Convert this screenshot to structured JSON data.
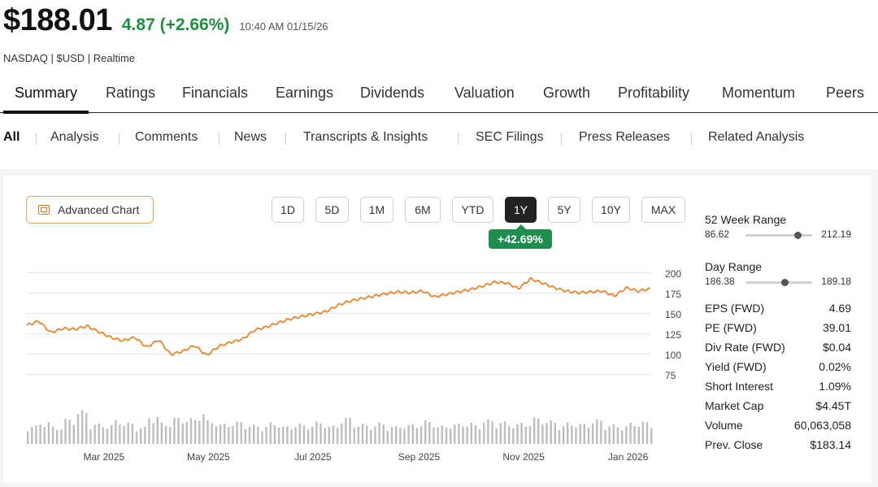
{
  "quote": {
    "price": "$188.01",
    "change": "4.87 (+2.66%)",
    "timestamp": "10:40 AM 01/15/26",
    "exchange": "NASDAQ | $USD | Realtime"
  },
  "main_tabs": [
    {
      "label": "Summary",
      "active": true
    },
    {
      "label": "Ratings"
    },
    {
      "label": "Financials"
    },
    {
      "label": "Earnings"
    },
    {
      "label": "Dividends"
    },
    {
      "label": "Valuation"
    },
    {
      "label": "Growth"
    },
    {
      "label": "Profitability"
    },
    {
      "label": "Momentum"
    },
    {
      "label": "Peers"
    }
  ],
  "sub_tabs": [
    {
      "label": "All",
      "active": true
    },
    {
      "label": "Analysis"
    },
    {
      "label": "Comments"
    },
    {
      "label": "News"
    },
    {
      "label": "Transcripts & Insights"
    },
    {
      "label": "SEC Filings"
    },
    {
      "label": "Press Releases"
    },
    {
      "label": "Related Analysis"
    }
  ],
  "chart_controls": {
    "advanced_chart_label": "Advanced Chart",
    "ranges": [
      "1D",
      "5D",
      "1M",
      "6M",
      "YTD",
      "1Y",
      "5Y",
      "10Y",
      "MAX"
    ],
    "selected_range": "1Y",
    "performance": "+42.69%"
  },
  "chart_data": {
    "type": "line",
    "y_ticks": [
      "200",
      "175",
      "150",
      "125",
      "100",
      "75"
    ],
    "ylim": [
      75,
      200
    ],
    "x_labels": [
      "Mar 2025",
      "May 2025",
      "Jul 2025",
      "Sep 2025",
      "Nov 2025",
      "Jan 2026"
    ],
    "line_color": "#e8862e",
    "volume_color": "#bdbdbd",
    "price": {
      "x": [
        "2025-01-15",
        "2025-01-22",
        "2025-01-29",
        "2025-02-05",
        "2025-02-12",
        "2025-02-19",
        "2025-02-26",
        "2025-03-05",
        "2025-03-12",
        "2025-03-19",
        "2025-03-26",
        "2025-04-02",
        "2025-04-09",
        "2025-04-16",
        "2025-04-23",
        "2025-04-30",
        "2025-05-07",
        "2025-05-14",
        "2025-05-21",
        "2025-05-28",
        "2025-06-04",
        "2025-06-11",
        "2025-06-18",
        "2025-06-25",
        "2025-07-02",
        "2025-07-09",
        "2025-07-16",
        "2025-07-23",
        "2025-07-30",
        "2025-08-06",
        "2025-08-13",
        "2025-08-20",
        "2025-08-27",
        "2025-09-03",
        "2025-09-10",
        "2025-09-17",
        "2025-09-24",
        "2025-10-01",
        "2025-10-08",
        "2025-10-15",
        "2025-10-22",
        "2025-10-29",
        "2025-11-05",
        "2025-11-12",
        "2025-11-19",
        "2025-11-26",
        "2025-12-03",
        "2025-12-10",
        "2025-12-17",
        "2025-12-24",
        "2025-12-31",
        "2026-01-07",
        "2026-01-14"
      ],
      "y": [
        135,
        140,
        126,
        131,
        130,
        134,
        127,
        120,
        116,
        120,
        108,
        117,
        99,
        103,
        110,
        98,
        109,
        114,
        118,
        129,
        133,
        138,
        143,
        146,
        149,
        152,
        160,
        165,
        168,
        171,
        174,
        176,
        175,
        177,
        170,
        173,
        176,
        179,
        183,
        188,
        187,
        180,
        192,
        187,
        181,
        177,
        175,
        176,
        177,
        171,
        181,
        177,
        180
      ]
    },
    "volume": [
      180,
      220,
      170,
      250,
      330,
      200,
      190,
      240,
      210,
      170,
      280,
      210,
      260,
      250,
      320,
      230,
      200,
      220,
      190,
      180,
      210,
      175,
      200,
      190,
      220,
      180,
      260,
      200,
      190,
      210,
      175,
      190,
      200,
      230,
      180,
      200,
      210,
      190,
      240,
      220,
      200,
      210,
      260,
      230,
      190,
      210,
      200,
      240,
      190,
      180,
      210,
      220,
      200
    ]
  },
  "stats": {
    "week52": {
      "label": "52 Week Range",
      "low": "86.62",
      "high": "212.19",
      "position": 0.78
    },
    "day": {
      "label": "Day Range",
      "low": "186.38",
      "high": "189.18",
      "position": 0.58
    },
    "rows": [
      {
        "label": "EPS (FWD)",
        "value": "4.69"
      },
      {
        "label": "PE (FWD)",
        "value": "39.01"
      },
      {
        "label": "Div Rate (FWD)",
        "value": "$0.04"
      },
      {
        "label": "Yield (FWD)",
        "value": "0.02%"
      },
      {
        "label": "Short Interest",
        "value": "1.09%"
      },
      {
        "label": "Market Cap",
        "value": "$4.45T"
      },
      {
        "label": "Volume",
        "value": "60,063,058"
      },
      {
        "label": "Prev. Close",
        "value": "$183.14"
      }
    ]
  }
}
